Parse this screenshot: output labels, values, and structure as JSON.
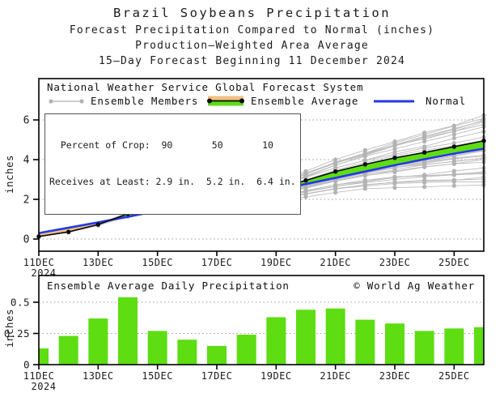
{
  "title": {
    "line1": "Brazil Soybeans Precipitation",
    "line2": "Forecast Precipitation Compared to Normal (inches)",
    "line3": "Production–Weighted Area Average",
    "line4": "15–Day Forecast Beginning 11 December 2024"
  },
  "legend": {
    "title": "National Weather Service Global Forecast System",
    "members_label": "Ensemble Members",
    "average_label": "Ensemble Average",
    "normal_label": "Normal"
  },
  "crop_table": {
    "line1": "  Percent of Crop:  90       50       10",
    "line2": "Receives at Least: 2.9 in.  5.2 in.  6.4 in."
  },
  "daily_header": {
    "title": "Ensemble Average Daily Precipitation",
    "credit": "© World Ag Weather"
  },
  "colors": {
    "green": "#5ddd12",
    "orange": "#f0c182",
    "blue": "#2438e8",
    "black_line": "#0a0a0a",
    "member_line": "#bdbdbd",
    "member_dot": "#b3b3b3",
    "grid": "#9a9a9a",
    "frame": "#000000",
    "text": "#1c1c1c"
  },
  "chart_data": [
    {
      "type": "line",
      "title": "Forecast precipitation compared to normal (cumulative, inches)",
      "x": [
        "11DEC",
        "12DEC",
        "13DEC",
        "14DEC",
        "15DEC",
        "16DEC",
        "17DEC",
        "18DEC",
        "19DEC",
        "20DEC",
        "21DEC",
        "22DEC",
        "23DEC",
        "24DEC",
        "25DEC",
        "26DEC"
      ],
      "x_tick_indices": [
        0,
        2,
        4,
        6,
        8,
        10,
        12,
        14
      ],
      "x_tick_labels": [
        "11DEC",
        "13DEC",
        "15DEC",
        "17DEC",
        "19DEC",
        "21DEC",
        "23DEC",
        "25DEC"
      ],
      "x_year_label": "2024",
      "ylabel": "inches",
      "yticks": [
        0,
        2,
        4,
        6
      ],
      "ytick_labels": [
        "0",
        "2",
        "4",
        "6"
      ],
      "ylim": [
        -0.6,
        8.1
      ],
      "grid": "dotted horizontal",
      "series": [
        {
          "name": "Ensemble Average",
          "values": [
            0.13,
            0.36,
            0.73,
            1.27,
            1.54,
            1.74,
            1.89,
            2.13,
            2.51,
            2.95,
            3.4,
            3.76,
            4.09,
            4.36,
            4.65,
            4.95
          ]
        },
        {
          "name": "Normal",
          "values": [
            0.3,
            0.57,
            0.84,
            1.12,
            1.42,
            1.7,
            1.97,
            2.23,
            2.48,
            2.77,
            3.08,
            3.4,
            3.72,
            4.02,
            4.3,
            4.55
          ]
        }
      ],
      "fills": {
        "average_above_normal": "green",
        "average_below_normal": "orange"
      },
      "ensemble_members": {
        "count": 30,
        "end_value_range": [
          2.7,
          6.3
        ],
        "note": "approximate gray member cloud with dots at each day"
      }
    },
    {
      "type": "bar",
      "title": "Ensemble Average Daily Precipitation",
      "categories": [
        "11DEC",
        "12DEC",
        "13DEC",
        "14DEC",
        "15DEC",
        "16DEC",
        "17DEC",
        "18DEC",
        "19DEC",
        "20DEC",
        "21DEC",
        "22DEC",
        "23DEC",
        "24DEC",
        "25DEC",
        "26DEC"
      ],
      "values": [
        0.13,
        0.23,
        0.37,
        0.54,
        0.27,
        0.2,
        0.15,
        0.24,
        0.38,
        0.44,
        0.45,
        0.36,
        0.33,
        0.27,
        0.29,
        0.3
      ],
      "x_tick_indices": [
        0,
        2,
        4,
        6,
        8,
        10,
        12,
        14
      ],
      "x_tick_labels": [
        "11DEC",
        "13DEC",
        "15DEC",
        "17DEC",
        "19DEC",
        "21DEC",
        "23DEC",
        "25DEC"
      ],
      "x_year_label": "2024",
      "ylabel": "inches",
      "yticks": [
        0,
        0.25,
        0.5
      ],
      "ytick_labels": [
        "0",
        "0.25",
        "0.5"
      ],
      "ylim": [
        0,
        0.71
      ],
      "grid": "dotted horizontal"
    }
  ]
}
